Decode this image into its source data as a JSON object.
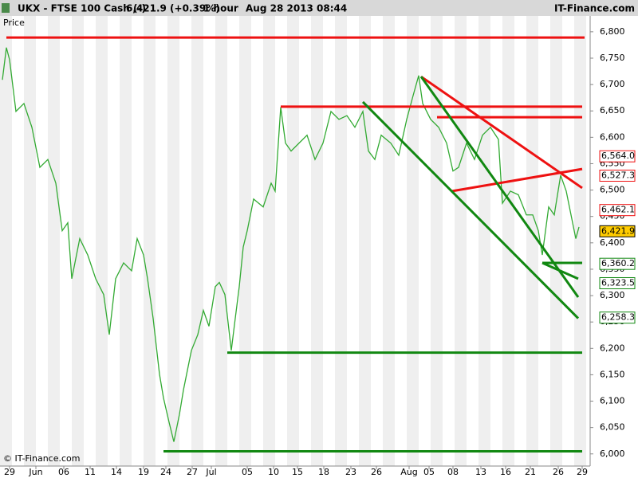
{
  "chart_data": {
    "type": "line",
    "header": {
      "symbol": "UKX - FTSE 100 Cash (-)",
      "quote": "6,421.9 (+0.39%)",
      "interval": "1 hour",
      "timestamp": "Aug 28 2013 08:44",
      "brand": "IT-Finance.com"
    },
    "panel_label": "Price",
    "copyright": "© IT-Finance.com",
    "xlim": [
      0,
      148
    ],
    "ylim": [
      5977,
      6830
    ],
    "xticks": [
      {
        "value": 2.4,
        "label": "29"
      },
      {
        "value": 9,
        "label": "Jun"
      },
      {
        "value": 16,
        "label": "06"
      },
      {
        "value": 22.6,
        "label": "11"
      },
      {
        "value": 29.2,
        "label": "14"
      },
      {
        "value": 36,
        "label": "19"
      },
      {
        "value": 41.6,
        "label": "24"
      },
      {
        "value": 48.2,
        "label": "27"
      },
      {
        "value": 53,
        "label": "Jul"
      },
      {
        "value": 62,
        "label": "05"
      },
      {
        "value": 68.6,
        "label": "10"
      },
      {
        "value": 74.6,
        "label": "15"
      },
      {
        "value": 81.2,
        "label": "18"
      },
      {
        "value": 88,
        "label": "23"
      },
      {
        "value": 94.4,
        "label": "26"
      },
      {
        "value": 102.6,
        "label": "Aug"
      },
      {
        "value": 107.6,
        "label": "05"
      },
      {
        "value": 113.6,
        "label": "08"
      },
      {
        "value": 120.6,
        "label": "13"
      },
      {
        "value": 126.8,
        "label": "16"
      },
      {
        "value": 133,
        "label": "21"
      },
      {
        "value": 140,
        "label": "26"
      },
      {
        "value": 146,
        "label": "29"
      }
    ],
    "yticks": [
      {
        "value": 6000,
        "label": "6,000"
      },
      {
        "value": 6050,
        "label": "6,050"
      },
      {
        "value": 6100,
        "label": "6,100"
      },
      {
        "value": 6150,
        "label": "6,150"
      },
      {
        "value": 6200,
        "label": "6,200"
      },
      {
        "value": 6250,
        "label": "6,250"
      },
      {
        "value": 6300,
        "label": "6,300"
      },
      {
        "value": 6350,
        "label": "6,350"
      },
      {
        "value": 6400,
        "label": "6,400"
      },
      {
        "value": 6450,
        "label": "6,450"
      },
      {
        "value": 6500,
        "label": "6,500"
      },
      {
        "value": 6550,
        "label": "6,550"
      },
      {
        "value": 6600,
        "label": "6,600"
      },
      {
        "value": 6650,
        "label": "6,650"
      },
      {
        "value": 6700,
        "label": "6,700"
      },
      {
        "value": 6750,
        "label": "6,750"
      },
      {
        "value": 6800,
        "label": "6,800"
      }
    ],
    "series": [
      {
        "color": "#33aa33",
        "x": [
          0.6,
          1.6,
          2.4,
          4,
          6,
          8,
          10,
          12,
          14,
          15.6,
          17,
          18,
          20,
          22,
          24,
          26,
          27.4,
          29,
          31,
          33,
          34.4,
          36,
          37,
          38.4,
          40,
          41,
          42.4,
          43.6,
          45,
          46,
          48,
          49.6,
          51,
          52.4,
          54,
          55,
          56.4,
          58,
          59,
          60,
          61,
          62,
          63.6,
          66,
          68,
          69,
          70.4,
          71.6,
          73,
          75,
          77,
          79,
          81,
          83,
          85,
          87,
          89,
          91,
          92.4,
          94,
          95.6,
          98,
          100,
          102,
          103.6,
          105,
          106,
          108,
          110,
          112,
          113.6,
          115,
          117,
          119,
          121,
          123,
          125,
          126,
          128,
          130,
          132,
          133.6,
          135,
          136,
          137.6,
          139,
          140.6,
          142,
          143.6,
          144.4,
          145.2
        ],
        "values": [
          6709,
          6770,
          6747,
          6649,
          6664,
          6619,
          6543,
          6558,
          6513,
          6423,
          6438,
          6332,
          6408,
          6377,
          6332,
          6302,
          6226,
          6332,
          6362,
          6347,
          6408,
          6377,
          6332,
          6257,
          6151,
          6106,
          6060,
          6023,
          6075,
          6121,
          6196,
          6226,
          6272,
          6242,
          6317,
          6325,
          6302,
          6196,
          6257,
          6317,
          6392,
          6423,
          6483,
          6468,
          6513,
          6498,
          6657,
          6589,
          6574,
          6589,
          6604,
          6558,
          6589,
          6649,
          6634,
          6641,
          6619,
          6649,
          6574,
          6558,
          6604,
          6589,
          6566,
          6634,
          6679,
          6717,
          6664,
          6634,
          6619,
          6589,
          6536,
          6543,
          6589,
          6558,
          6604,
          6619,
          6596,
          6475,
          6498,
          6491,
          6453,
          6453,
          6423,
          6377,
          6468,
          6453,
          6528,
          6498,
          6438,
          6408,
          6430
        ]
      }
    ],
    "trendlines": [
      {
        "x": [
          1.6,
          146.6
        ],
        "y": [
          6789,
          6789
        ],
        "color": "#ee1111"
      },
      {
        "x": [
          70.4,
          146
        ],
        "y": [
          6658,
          6658
        ],
        "color": "#ee1111"
      },
      {
        "x": [
          109.6,
          146
        ],
        "y": [
          6638,
          6638
        ],
        "color": "#ee1111"
      },
      {
        "x": [
          105.6,
          146
        ],
        "y": [
          6715,
          6504
        ],
        "color": "#ee1111"
      },
      {
        "x": [
          113.4,
          146
        ],
        "y": [
          6498,
          6540
        ],
        "color": "#ee1111"
      },
      {
        "x": [
          57,
          146
        ],
        "y": [
          6192,
          6192
        ],
        "color": "#118811"
      },
      {
        "x": [
          41,
          146
        ],
        "y": [
          6005,
          6005
        ],
        "color": "#118811"
      },
      {
        "x": [
          136,
          146
        ],
        "y": [
          6362,
          6362
        ],
        "color": "#118811"
      },
      {
        "x": [
          91,
          145
        ],
        "y": [
          6667,
          6257
        ],
        "color": "#118811"
      },
      {
        "x": [
          105.6,
          145
        ],
        "y": [
          6715,
          6297
        ],
        "color": "#118811"
      },
      {
        "x": [
          136,
          145
        ],
        "y": [
          6362,
          6332
        ],
        "color": "#118811"
      }
    ],
    "price_tags": [
      {
        "value": 6564.0,
        "label": "6,564.0",
        "color": "#ee1111"
      },
      {
        "value": 6527.3,
        "label": "6,527.3",
        "color": "#ee1111"
      },
      {
        "value": 6462.1,
        "label": "6,462.1",
        "color": "#ee1111"
      },
      {
        "value": 6421.9,
        "label": "6,421.9",
        "color": "#000000",
        "background": "#ffcc00"
      },
      {
        "value": 6360.2,
        "label": "6,360.2",
        "color": "#118811"
      },
      {
        "value": 6323.5,
        "label": "6,323.5",
        "color": "#118811"
      },
      {
        "value": 6258.3,
        "label": "6,258.3",
        "color": "#118811"
      }
    ]
  }
}
